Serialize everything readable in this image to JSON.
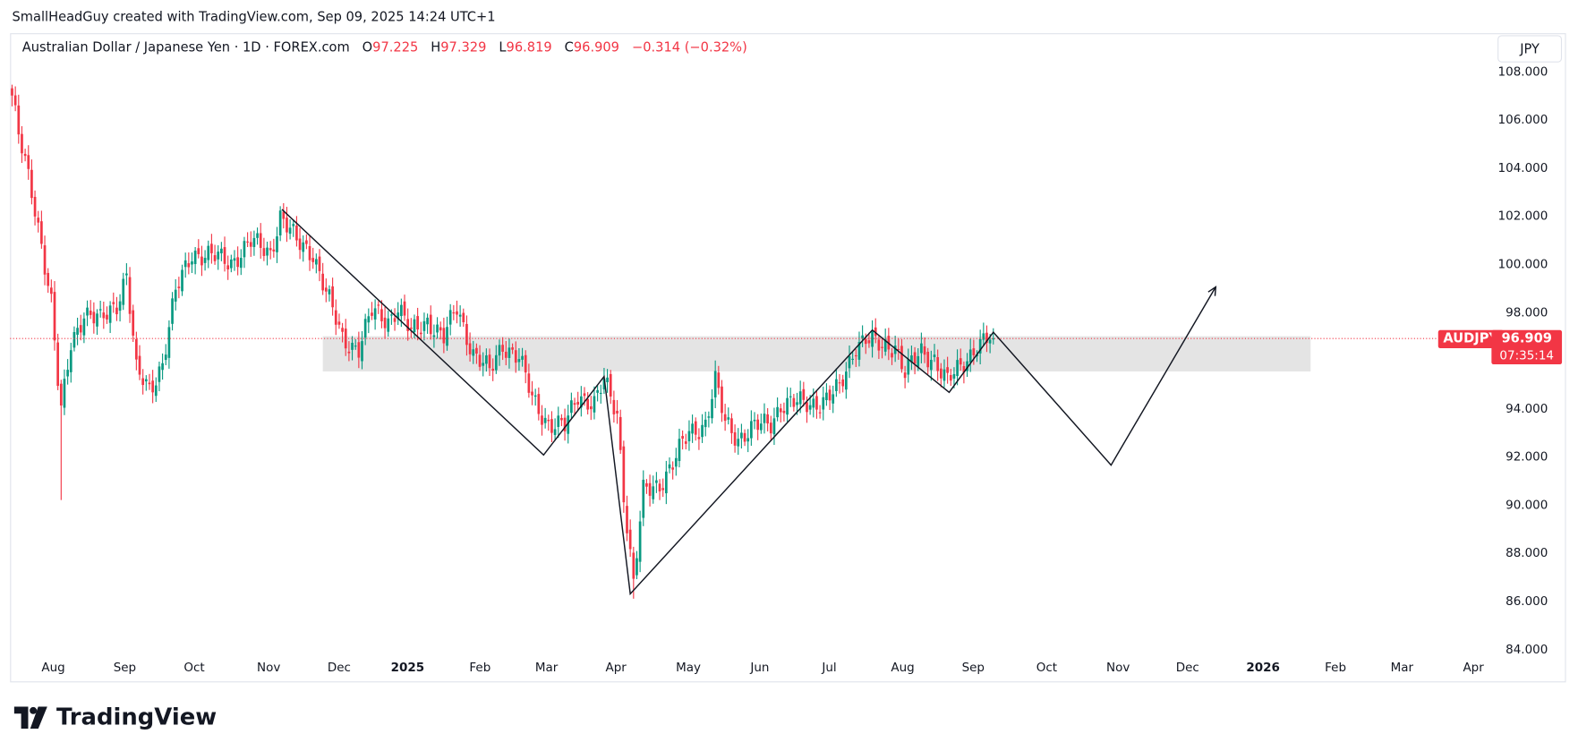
{
  "credit": "SmallHeadGuy created with TradingView.com, Sep 09, 2025 14:24 UTC+1",
  "legend": {
    "title": "Australian Dollar / Japanese Yen · 1D · FOREX.com",
    "o_label": "O",
    "o": "97.225",
    "h_label": "H",
    "h": "97.329",
    "l_label": "L",
    "l": "96.819",
    "c_label": "C",
    "c": "96.909",
    "change": "−0.314 (−0.32%)"
  },
  "currency_button": "JPY",
  "price_tag": {
    "symbol": "AUDJPY",
    "price": "96.909",
    "countdown": "07:35:14"
  },
  "brand": "TradingView",
  "colors": {
    "up": "#089981",
    "down": "#f23645",
    "zone": "#e3e3e3",
    "drawing": "#131722"
  },
  "chart_data": {
    "type": "candlestick",
    "symbol": "AUDJPY",
    "timeframe": "1D",
    "ylim": [
      84,
      108
    ],
    "y_ticks": [
      "108.000",
      "106.000",
      "104.000",
      "102.000",
      "100.000",
      "98.000",
      "96.000",
      "94.000",
      "92.000",
      "90.000",
      "88.000",
      "86.000",
      "84.000"
    ],
    "x_ticks": [
      "Aug",
      "Sep",
      "Oct",
      "Nov",
      "Dec",
      "2025",
      "Feb",
      "Mar",
      "Apr",
      "May",
      "Jun",
      "Jul",
      "Aug",
      "Sep",
      "Oct",
      "Nov",
      "Dec",
      "2026",
      "Feb",
      "Mar",
      "Apr"
    ],
    "bar_count": 301,
    "close_path_bar_index_price": [
      [
        0,
        107.0
      ],
      [
        2,
        105.3
      ],
      [
        6,
        103.0
      ],
      [
        9,
        100.9
      ],
      [
        12,
        98.4
      ],
      [
        14,
        95.1
      ],
      [
        15,
        93.8
      ],
      [
        18,
        96.7
      ],
      [
        22,
        98.0
      ],
      [
        27,
        97.6
      ],
      [
        32,
        98.4
      ],
      [
        35,
        99.6
      ],
      [
        38,
        95.5
      ],
      [
        42,
        94.8
      ],
      [
        46,
        95.9
      ],
      [
        50,
        98.8
      ],
      [
        55,
        100.5
      ],
      [
        61,
        100.3
      ],
      [
        67,
        100.1
      ],
      [
        73,
        100.9
      ],
      [
        79,
        100.5
      ],
      [
        82,
        102.0
      ],
      [
        87,
        100.9
      ],
      [
        92,
        100.5
      ],
      [
        96,
        98.8
      ],
      [
        101,
        96.9
      ],
      [
        106,
        96.5
      ],
      [
        110,
        98.0
      ],
      [
        115,
        97.7
      ],
      [
        118,
        98.2
      ],
      [
        122,
        97.1
      ],
      [
        127,
        97.7
      ],
      [
        132,
        96.9
      ],
      [
        136,
        98.2
      ],
      [
        141,
        96.3
      ],
      [
        146,
        95.5
      ],
      [
        150,
        96.7
      ],
      [
        155,
        96.1
      ],
      [
        159,
        94.4
      ],
      [
        164,
        93.4
      ],
      [
        169,
        93.2
      ],
      [
        173,
        94.6
      ],
      [
        178,
        94.2
      ],
      [
        181,
        95.1
      ],
      [
        185,
        93.8
      ],
      [
        187,
        90.5
      ],
      [
        190,
        86.7
      ],
      [
        193,
        90.5
      ],
      [
        198,
        90.9
      ],
      [
        202,
        91.7
      ],
      [
        207,
        93.0
      ],
      [
        212,
        93.4
      ],
      [
        215,
        95.1
      ],
      [
        218,
        93.4
      ],
      [
        222,
        92.8
      ],
      [
        227,
        93.2
      ],
      [
        232,
        93.4
      ],
      [
        235,
        94.2
      ],
      [
        239,
        94.2
      ],
      [
        244,
        94.2
      ],
      [
        249,
        94.4
      ],
      [
        253,
        94.8
      ],
      [
        258,
        96.7
      ],
      [
        261,
        96.9
      ],
      [
        266,
        96.5
      ],
      [
        270,
        96.7
      ],
      [
        273,
        95.5
      ],
      [
        278,
        96.3
      ],
      [
        282,
        96.1
      ],
      [
        286,
        95.1
      ],
      [
        290,
        95.7
      ],
      [
        295,
        96.7
      ],
      [
        300,
        96.909
      ]
    ],
    "extreme_lows": [
      [
        15,
        90.2
      ],
      [
        190,
        86.1
      ]
    ],
    "last_price": 96.909,
    "drawings": {
      "zigzag_bar_index_price": [
        [
          82.5,
          102.27
        ],
        [
          162.5,
          92.07
        ],
        [
          181,
          95.33
        ],
        [
          189,
          86.3
        ],
        [
          263,
          97.26
        ],
        [
          286.5,
          94.67
        ],
        [
          300,
          97.17
        ],
        [
          336,
          91.65
        ],
        [
          368,
          99.05
        ]
      ],
      "zone": {
        "from_bar": 95,
        "to_bar": 397,
        "top": 97.0,
        "bottom": 95.54
      }
    }
  }
}
